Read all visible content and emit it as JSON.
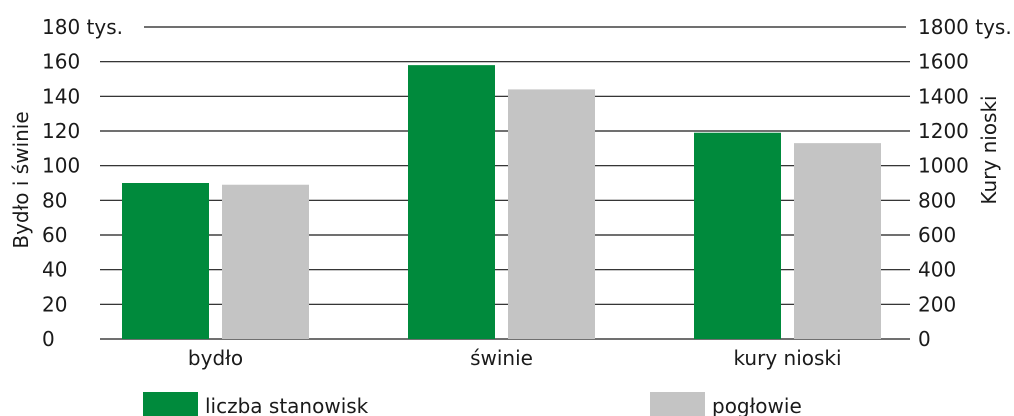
{
  "chart_data": {
    "type": "bar",
    "categories": [
      "bydło",
      "świnie",
      "kury nioski"
    ],
    "series": [
      {
        "name": "liczba stanowisk",
        "color": "#008a3c",
        "values": [
          90,
          158,
          119
        ]
      },
      {
        "name": "pogłowie",
        "color": "#c4c4c4",
        "values": [
          89,
          144,
          113
        ]
      }
    ],
    "y_left": {
      "label": "Bydło i świnie",
      "ylim": [
        0,
        180
      ],
      "ticks": [
        "0",
        "20",
        "40",
        "60",
        "80",
        "100",
        "120",
        "140",
        "160",
        "180 tys."
      ]
    },
    "y_right": {
      "label": "Kury nioski",
      "ylim": [
        0,
        1800
      ],
      "ticks": [
        "0",
        "200",
        "400",
        "600",
        "800",
        "1000",
        "1200",
        "1400",
        "1600",
        "1800 tys."
      ]
    },
    "grid": true,
    "legend_position": "bottom"
  }
}
